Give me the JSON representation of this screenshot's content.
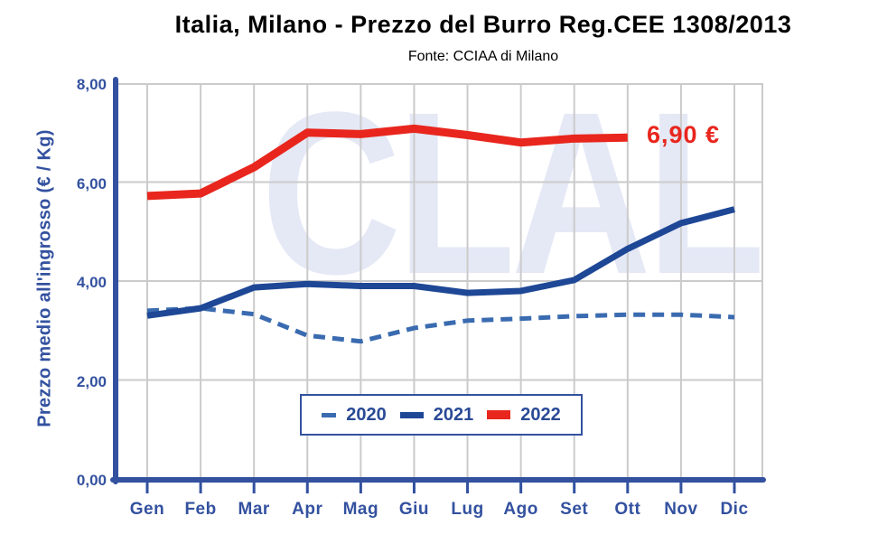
{
  "header": {
    "title": "Italia, Milano - Prezzo del Burro Reg.CEE 1308/2013",
    "subtitle": "Fonte: CCIAA di Milano"
  },
  "watermark": "CLAL",
  "annotation": {
    "text": "6,90 €"
  },
  "colors": {
    "axis_and_labels": "#33519F",
    "grid": "#CBCBCB",
    "series_2020": "#3A6BB0",
    "series_2021": "#1E4796",
    "series_2022": "#E8261D",
    "title_text": "#000000",
    "watermark": "#E5E8F5"
  },
  "chart_data": {
    "type": "line",
    "title": "Italia, Milano - Prezzo del Burro Reg.CEE 1308/2013",
    "subtitle": "Fonte: CCIAA di Milano",
    "ylabel": "Prezzo medio all'ingrosso (€ / Kg)",
    "xlabel": "",
    "ylim": [
      0,
      8
    ],
    "grid": true,
    "legend_position": "bottom-center-inside",
    "categories": [
      "Gen",
      "Feb",
      "Mar",
      "Apr",
      "Mag",
      "Giu",
      "Lug",
      "Ago",
      "Set",
      "Ott",
      "Nov",
      "Dic"
    ],
    "yticks": [
      {
        "value": 8,
        "label": "8,00"
      },
      {
        "value": 6,
        "label": "6,00"
      },
      {
        "value": 4,
        "label": "4,00"
      },
      {
        "value": 2,
        "label": "2,00"
      },
      {
        "value": 0,
        "label": "0,00"
      }
    ],
    "series": [
      {
        "name": "2020",
        "style": "dashed",
        "color": "#3A6BB0",
        "width": 5,
        "values": [
          3.4,
          3.45,
          3.33,
          2.9,
          2.78,
          3.05,
          3.2,
          3.24,
          3.29,
          3.32,
          3.32,
          3.27
        ]
      },
      {
        "name": "2021",
        "style": "solid",
        "color": "#1E4796",
        "width": 7,
        "values": [
          3.3,
          3.45,
          3.87,
          3.94,
          3.9,
          3.9,
          3.76,
          3.8,
          4.02,
          4.65,
          5.17,
          5.45
        ]
      },
      {
        "name": "2022",
        "style": "solid",
        "color": "#E8261D",
        "width": 9,
        "values": [
          5.72,
          5.77,
          6.3,
          7.0,
          6.97,
          7.08,
          6.95,
          6.8,
          6.88,
          6.9
        ]
      }
    ],
    "annotation": {
      "text": "6,90 €",
      "series": "2022",
      "at_category": "Ott"
    }
  }
}
